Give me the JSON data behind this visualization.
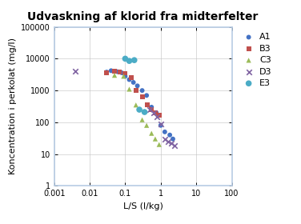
{
  "title": "Udvaskning af klorid fra midterfelter",
  "xlabel": "L/S (l/kg)",
  "ylabel": "Koncentration i perkolat (mg/l)",
  "xlim": [
    0.001,
    100
  ],
  "ylim": [
    1,
    100000
  ],
  "series": {
    "A1": {
      "color": "#4472C4",
      "marker": "o",
      "x": [
        0.03,
        0.04,
        0.05,
        0.06,
        0.08,
        0.1,
        0.13,
        0.17,
        0.22,
        0.3,
        0.4,
        0.55,
        0.75,
        1.0,
        1.3,
        1.8,
        2.2
      ],
      "y": [
        3800,
        4200,
        4000,
        3900,
        3600,
        2800,
        2200,
        1800,
        1400,
        1000,
        700,
        300,
        200,
        80,
        50,
        40,
        30
      ]
    },
    "B3": {
      "color": "#C0504D",
      "marker": "s",
      "x": [
        0.03,
        0.05,
        0.07,
        0.1,
        0.15,
        0.2,
        0.3,
        0.42,
        0.55,
        0.7,
        0.9
      ],
      "y": [
        3600,
        4000,
        3800,
        3500,
        2500,
        1000,
        650,
        350,
        250,
        200,
        170
      ]
    },
    "C3": {
      "color": "#9BBB59",
      "marker": "^",
      "x": [
        0.05,
        0.09,
        0.13,
        0.2,
        0.3,
        0.4,
        0.55,
        0.7,
        0.9
      ],
      "y": [
        3000,
        2800,
        1100,
        350,
        120,
        80,
        45,
        30,
        20
      ]
    },
    "D3": {
      "color": "#8064A2",
      "marker": "x",
      "x": [
        0.004,
        0.5,
        0.65,
        0.8,
        1.0,
        1.3,
        1.6,
        2.0,
        2.5
      ],
      "y": [
        4000,
        250,
        200,
        150,
        90,
        30,
        25,
        22,
        18
      ]
    },
    "E3": {
      "color": "#4BACC6",
      "marker": "o",
      "x": [
        0.1,
        0.13,
        0.18,
        0.25,
        0.35
      ],
      "y": [
        10000,
        8500,
        9000,
        250,
        210
      ]
    }
  },
  "marker_sizes": {
    "A1": 18,
    "B3": 18,
    "C3": 20,
    "D3": 22,
    "E3": 30
  },
  "background_color": "#FFFFFF",
  "title_fontsize": 10,
  "title_bold": true,
  "label_fontsize": 8,
  "tick_fontsize": 7,
  "legend_fontsize": 8
}
